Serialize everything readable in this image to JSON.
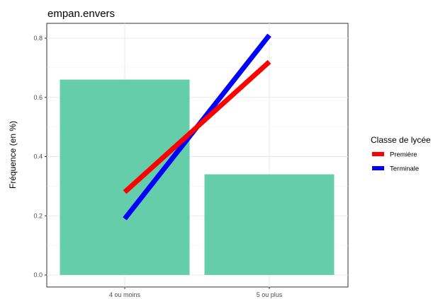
{
  "chart_data": {
    "type": "bar",
    "title": "empan.envers",
    "xlabel": "",
    "ylabel": "Fréquence (en %)",
    "categories": [
      "4 ou moins",
      "5 ou plus"
    ],
    "bar_values": [
      0.66,
      0.34
    ],
    "bar_color": "#66cdaa",
    "series": [
      {
        "name": "Première",
        "values": [
          0.28,
          0.72
        ],
        "color": "#ff0000"
      },
      {
        "name": "Terminale",
        "values": [
          0.19,
          0.81
        ],
        "color": "#0000ff"
      }
    ],
    "ylim": [
      0,
      0.85
    ],
    "yticks": [
      0.0,
      0.2,
      0.4,
      0.6,
      0.8
    ],
    "ytick_labels": [
      "0.0",
      "0.2",
      "0.4",
      "0.6",
      "0.8"
    ],
    "grid": true,
    "legend": {
      "title": "Classe de lycée",
      "placement": "right",
      "items": [
        "Première",
        "Terminale"
      ]
    }
  }
}
